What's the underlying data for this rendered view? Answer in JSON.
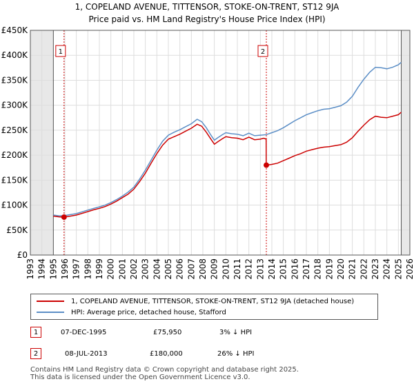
{
  "chart_data": {
    "type": "line",
    "title": "1, COPELAND AVENUE, TITTENSOR, STOKE-ON-TRENT, ST12 9JA",
    "subtitle": "Price paid vs. HM Land Registry's House Price Index (HPI)",
    "xlim": [
      1993,
      2026
    ],
    "ylim": [
      0,
      450000
    ],
    "x_ticks": [
      1993,
      1994,
      1995,
      1996,
      1997,
      1998,
      1999,
      2000,
      2001,
      2002,
      2003,
      2004,
      2005,
      2006,
      2007,
      2008,
      2009,
      2010,
      2011,
      2012,
      2013,
      2014,
      2015,
      2016,
      2017,
      2018,
      2019,
      2020,
      2021,
      2022,
      2023,
      2024,
      2025,
      2026
    ],
    "x_tick_labels": [
      "1993",
      "1994",
      "1995",
      "1996",
      "1997",
      "1998",
      "1999",
      "2000",
      "2001",
      "2002",
      "2003",
      "2004",
      "2005",
      "2006",
      "2007",
      "2008",
      "2009",
      "2010",
      "2011",
      "2012",
      "2013",
      "2014",
      "2015",
      "2016",
      "2017",
      "2018",
      "2019",
      "2020",
      "2021",
      "2022",
      "2023",
      "2024",
      "2025",
      "2026"
    ],
    "y_ticks": [
      0,
      50000,
      100000,
      150000,
      200000,
      250000,
      300000,
      350000,
      400000,
      450000
    ],
    "y_tick_labels": [
      "£0",
      "£50K",
      "£100K",
      "£150K",
      "£200K",
      "£250K",
      "£300K",
      "£350K",
      "£400K",
      "£450K"
    ],
    "data_range": [
      1995.0,
      2025.25
    ],
    "grid": true,
    "series": [
      {
        "name": "1, COPELAND AVENUE, TITTENSOR, STOKE-ON-TRENT, ST12 9JA (detached house)",
        "color": "#cc0000",
        "x": [
          1995.0,
          1995.5,
          1995.93,
          1996.5,
          1997.0,
          1997.5,
          1998.0,
          1998.5,
          1999.0,
          1999.5,
          2000.0,
          2000.5,
          2001.0,
          2001.5,
          2002.0,
          2002.5,
          2003.0,
          2003.5,
          2004.0,
          2004.5,
          2005.0,
          2005.5,
          2006.0,
          2006.5,
          2007.0,
          2007.5,
          2007.9,
          2008.3,
          2008.7,
          2009.0,
          2009.3,
          2009.7,
          2010.0,
          2010.5,
          2011.0,
          2011.5,
          2012.0,
          2012.5,
          2013.0,
          2013.3,
          2013.5,
          2013.51,
          2014.0,
          2014.5,
          2015.0,
          2015.5,
          2016.0,
          2016.5,
          2017.0,
          2017.5,
          2018.0,
          2018.5,
          2019.0,
          2019.5,
          2020.0,
          2020.5,
          2021.0,
          2021.5,
          2022.0,
          2022.5,
          2023.0,
          2023.5,
          2024.0,
          2024.5,
          2025.0,
          2025.25
        ],
        "values": [
          78000,
          76500,
          75950,
          78000,
          80000,
          83500,
          87000,
          90500,
          93500,
          97000,
          102000,
          108000,
          115000,
          122000,
          132000,
          147000,
          164000,
          184000,
          203000,
          220000,
          232000,
          237000,
          242000,
          248000,
          254000,
          262000,
          258000,
          246000,
          232000,
          222000,
          227000,
          233000,
          237000,
          235000,
          234000,
          231000,
          236000,
          231000,
          232000,
          234000,
          232000,
          180000,
          181500,
          184000,
          189000,
          194000,
          199000,
          203000,
          208000,
          211000,
          214000,
          216000,
          217000,
          219000,
          221000,
          226000,
          235000,
          248000,
          260000,
          271000,
          278000,
          276000,
          275000,
          278000,
          281000,
          286000
        ]
      },
      {
        "name": "HPI: Average price, detached house, Stafford",
        "color": "#5b8ec6",
        "x": [
          1995.0,
          1995.5,
          1996.0,
          1996.5,
          1997.0,
          1997.5,
          1998.0,
          1998.5,
          1999.0,
          1999.5,
          2000.0,
          2000.5,
          2001.0,
          2001.5,
          2002.0,
          2002.5,
          2003.0,
          2003.5,
          2004.0,
          2004.5,
          2005.0,
          2005.5,
          2006.0,
          2006.5,
          2007.0,
          2007.5,
          2007.9,
          2008.3,
          2008.7,
          2009.0,
          2009.3,
          2009.7,
          2010.0,
          2010.5,
          2011.0,
          2011.5,
          2012.0,
          2012.5,
          2013.0,
          2013.5,
          2014.0,
          2014.5,
          2015.0,
          2015.5,
          2016.0,
          2016.5,
          2017.0,
          2017.5,
          2018.0,
          2018.5,
          2019.0,
          2019.5,
          2020.0,
          2020.5,
          2021.0,
          2021.5,
          2022.0,
          2022.5,
          2023.0,
          2023.5,
          2024.0,
          2024.5,
          2025.0,
          2025.25
        ],
        "values": [
          80000,
          78500,
          79000,
          81000,
          83000,
          86500,
          90000,
          93500,
          96500,
          100000,
          105000,
          111000,
          118000,
          126000,
          136000,
          152000,
          170000,
          190000,
          210000,
          228000,
          240000,
          246000,
          251000,
          257000,
          263000,
          272000,
          267000,
          255000,
          240000,
          230000,
          235000,
          241000,
          245000,
          243000,
          242000,
          239000,
          244000,
          239000,
          240000,
          241000,
          245000,
          249000,
          255000,
          262000,
          269000,
          275000,
          281000,
          285000,
          289000,
          292000,
          293000,
          296000,
          299000,
          306000,
          318000,
          336000,
          352000,
          366000,
          376000,
          375000,
          373000,
          376000,
          381000,
          386000
        ]
      }
    ],
    "markers": [
      {
        "label": "1",
        "x": 1995.93,
        "value": 75950
      },
      {
        "label": "2",
        "x": 2013.52,
        "value": 180000
      }
    ]
  },
  "legend": {
    "series1": "1, COPELAND AVENUE, TITTENSOR, STOKE-ON-TRENT, ST12 9JA (detached house)",
    "series2": "HPI: Average price, detached house, Stafford"
  },
  "transactions": [
    {
      "label": "1",
      "date": "07-DEC-1995",
      "price": "£75,950",
      "delta": "3% ↓ HPI"
    },
    {
      "label": "2",
      "date": "08-JUL-2013",
      "price": "£180,000",
      "delta": "26% ↓ HPI"
    }
  ],
  "footer": {
    "line1": "Contains HM Land Registry data © Crown copyright and database right 2025.",
    "line2": "This data is licensed under the Open Government Licence v3.0."
  }
}
